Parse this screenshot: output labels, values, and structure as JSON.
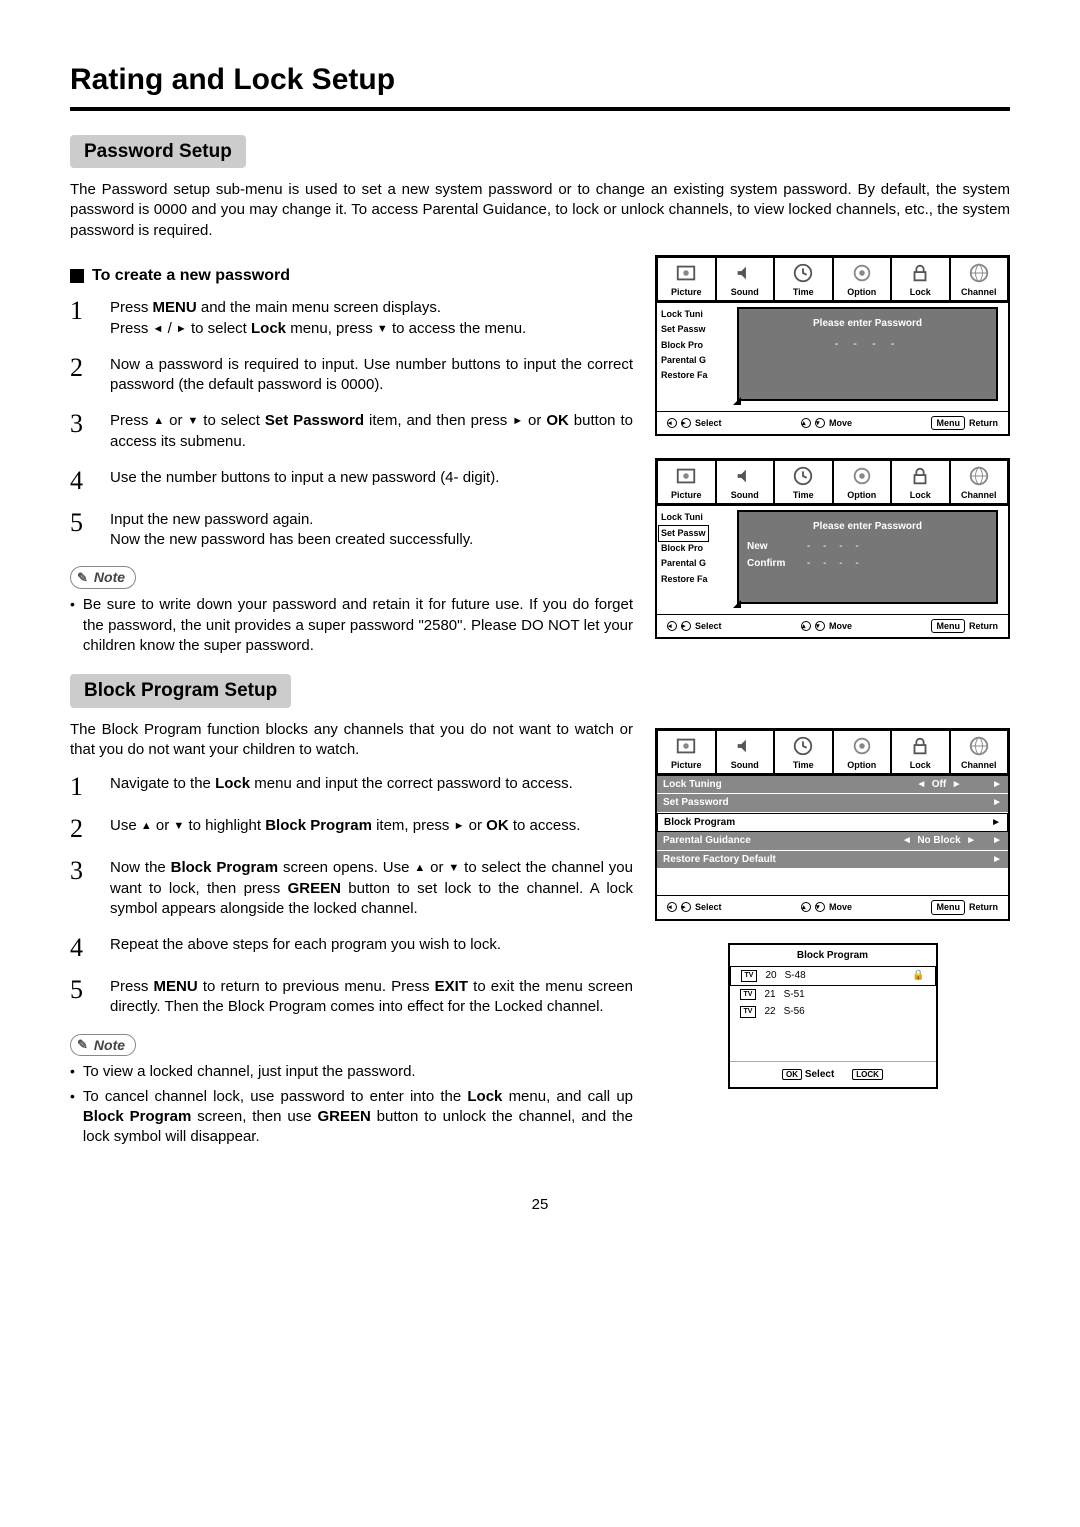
{
  "page": {
    "title": "Rating and Lock Setup",
    "number": "25"
  },
  "password": {
    "heading": "Password Setup",
    "intro": "The Password setup sub-menu is used to set a new system password or to change an existing system password. By default, the system password is 0000 and you may change it. To access Parental Guidance, to lock or unlock channels, to view locked channels, etc., the system password is required.",
    "subheading": "To create a new password",
    "steps": [
      {
        "n": "1",
        "pre": "Press ",
        "b1": "MENU",
        "mid": " and the main menu screen displays.",
        "line2a": "Press ",
        "line2b": " to select ",
        "b2": "Lock",
        "line2c": " menu,  press ",
        "line2d": " to access the menu."
      },
      {
        "n": "2",
        "text": "Now a password is required to input. Use number buttons to input the correct password (the default password is 0000)."
      },
      {
        "n": "3",
        "pre": "Press ",
        "mid": " to select ",
        "b1": "Set Password",
        "post": " item, and then press ",
        "post2": " or ",
        "b2": "OK",
        "post3": " button to access its submenu."
      },
      {
        "n": "4",
        "text": "Use  the number buttons to input a  new password (4- digit)."
      },
      {
        "n": "5",
        "line1": "Input the new password again.",
        "line2": "Now the new password has been created successfully."
      }
    ],
    "noteLabel": "Note",
    "notes": [
      "Be sure to write down your password and retain it for future use. If you do forget the password, the unit provides a  super password \"2580\". Please DO NOT let your children know the super password."
    ]
  },
  "block": {
    "heading": "Block Program Setup",
    "intro": "The Block Program function blocks any channels that you do not want to watch or that you do not want your children to watch.",
    "steps": [
      {
        "n": "1",
        "pre": "Navigate to the ",
        "b1": "Lock",
        "post": " menu and input the correct password to access."
      },
      {
        "n": "2",
        "pre": "Use ",
        "mid": " to highlight ",
        "b1": "Block Program",
        "post": " item, press ",
        "post2": " or  ",
        "b2": "OK",
        "post3": " to access."
      },
      {
        "n": "3",
        "pre": "Now the ",
        "b1": "Block Program",
        "mid": " screen opens. Use ",
        "mid2": " to select the channel you want to lock, then press ",
        "b2": "GREEN",
        "post": " button to set lock to the channel. A lock symbol appears alongside the locked channel."
      },
      {
        "n": "4",
        "text": "Repeat the above steps for each program you wish to lock."
      },
      {
        "n": "5",
        "pre": "Press ",
        "b1": "MENU",
        "mid": " to return to previous menu. Press ",
        "b2": "EXIT",
        "post": " to exit the menu screen directly.  Then the Block Program comes into effect for the Locked channel."
      }
    ],
    "noteLabel": "Note",
    "notes": [
      {
        "text": "To view a locked channel, just input the password."
      },
      {
        "pre": "To cancel channel lock, use password  to enter into the ",
        "b1": "Lock",
        "mid": " menu,  and call up ",
        "b2": "Block  Program",
        "mid2": " screen, then use ",
        "b3": "GREEN",
        "post": " button to unlock the channel, and the lock symbol will disappear."
      }
    ]
  },
  "osd": {
    "tabs": [
      "Picture",
      "Sound",
      "Time",
      "Option",
      "Lock",
      "Channel"
    ],
    "sideItems": [
      "Lock Tuni",
      "Set Passw",
      "Block Pro",
      "Parental G",
      "Restore Fa"
    ],
    "popup1": {
      "title": "Please enter Password",
      "dots": "- - - -"
    },
    "popup2": {
      "title": "Please enter Password",
      "new": "New",
      "confirm": "Confirm",
      "dots": "- - - -"
    },
    "footer": {
      "select": "Select",
      "move": "Move",
      "menu": "Menu",
      "return": "Return"
    },
    "lockMenu": {
      "rows": [
        {
          "label": "Lock Tuning",
          "mid": "Off",
          "arrows": true
        },
        {
          "label": "Set Password",
          "mid": "",
          "arrows": false,
          "right": true
        },
        {
          "label": "Block Program",
          "mid": "",
          "arrows": false,
          "right": true,
          "sel": true
        },
        {
          "label": "Parental Guidance",
          "mid": "No Block",
          "arrows": true
        },
        {
          "label": "Restore Factory Default",
          "mid": "",
          "arrows": false,
          "right": true
        }
      ]
    },
    "bp": {
      "title": "Block Program",
      "rows": [
        {
          "n": "20",
          "ch": "S-48",
          "lock": true,
          "sel": true
        },
        {
          "n": "21",
          "ch": "S-51"
        },
        {
          "n": "22",
          "ch": "S-56"
        }
      ],
      "ok": "OK",
      "select": "Select",
      "lock": "LOCK"
    }
  }
}
